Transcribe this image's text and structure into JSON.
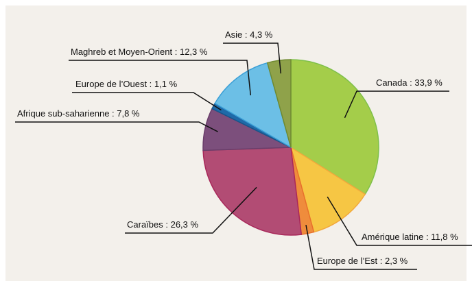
{
  "chart_data": {
    "type": "pie",
    "labels": [
      "Canada : 33,9 %",
      "Amérique latine : 11,8 %",
      "Europe de l’Est : 2,3 %",
      "Caraïbes : 26,3 %",
      "Afrique sub-saharienne : 7,8 %",
      "Europe de l’Ouest : 1,1 %",
      "Maghreb et Moyen-Orient : 12,3 %",
      "Asie : 4,3 %"
    ],
    "values": [
      33.9,
      11.8,
      2.3,
      26.3,
      7.8,
      1.1,
      12.3,
      4.3
    ],
    "colors": [
      "#a4cd4a",
      "#f6c644",
      "#ef8c3c",
      "#b24c74",
      "#7c4f7c",
      "#1f6aa8",
      "#6cbfe6",
      "#8fa24a"
    ],
    "strokes": [
      "#7fc04a",
      "#f2a83c",
      "#e8702c",
      "#a8285a",
      "#6a3e6a",
      "#17558a",
      "#3a9fd6",
      "#6f8a30"
    ]
  }
}
